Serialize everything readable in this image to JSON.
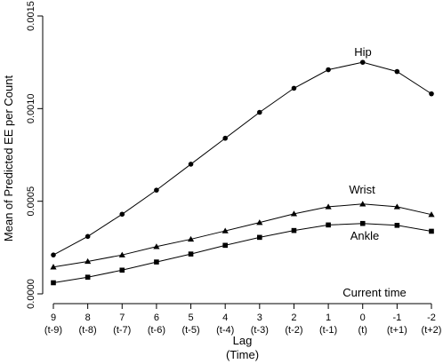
{
  "chart_data": {
    "type": "line",
    "title": "",
    "xlabel": "Lag",
    "xlabel_sub": "(Time)",
    "ylabel": "Mean of Predicted EE per Count",
    "ylim": [
      0,
      0.0015
    ],
    "y_ticks": [
      0.0,
      0.0005,
      0.001,
      0.0015
    ],
    "y_tick_labels": [
      "0.0000",
      "0.0005",
      "0.0010",
      "0.0015"
    ],
    "x_ticks": [
      {
        "lag": "9",
        "time": "(t-9)"
      },
      {
        "lag": "8",
        "time": "(t-8)"
      },
      {
        "lag": "7",
        "time": "(t-7)"
      },
      {
        "lag": "6",
        "time": "(t-6)"
      },
      {
        "lag": "5",
        "time": "(t-5)"
      },
      {
        "lag": "4",
        "time": "(t-4)"
      },
      {
        "lag": "3",
        "time": "(t-3)"
      },
      {
        "lag": "2",
        "time": "(t-2)"
      },
      {
        "lag": "1",
        "time": "(t-1)"
      },
      {
        "lag": "0",
        "time": "(t)"
      },
      {
        "lag": "-1",
        "time": "(t+1)"
      },
      {
        "lag": "-2",
        "time": "(t+2)"
      }
    ],
    "x": [
      9,
      8,
      7,
      6,
      5,
      4,
      3,
      2,
      1,
      0,
      -1,
      -2
    ],
    "grid": false,
    "legend": "none",
    "series": [
      {
        "name": "Hip",
        "marker": "circle",
        "values": [
          0.00021,
          0.00031,
          0.00043,
          0.00056,
          0.0007,
          0.00084,
          0.00098,
          0.00111,
          0.00121,
          0.00125,
          0.0012,
          0.00108
        ]
      },
      {
        "name": "Wrist",
        "marker": "triangle",
        "values": [
          0.000145,
          0.000175,
          0.00021,
          0.000255,
          0.000295,
          0.00034,
          0.000385,
          0.000432,
          0.00047,
          0.000485,
          0.00047,
          0.000428
        ]
      },
      {
        "name": "Ankle",
        "marker": "square",
        "values": [
          6e-05,
          9e-05,
          0.000128,
          0.000172,
          0.000215,
          0.000262,
          0.000305,
          0.000342,
          0.000372,
          0.00038,
          0.00037,
          0.000338
        ]
      }
    ],
    "annotations": {
      "current_time": "Current time"
    }
  }
}
